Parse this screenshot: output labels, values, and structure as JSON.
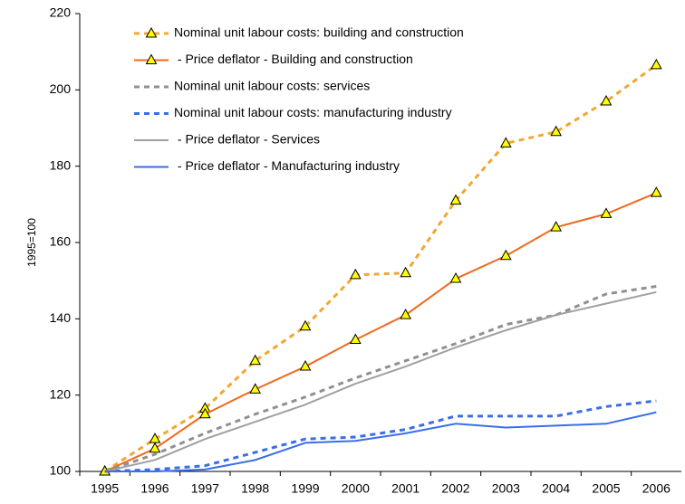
{
  "chart_data": {
    "type": "line",
    "y_label": "1995=100",
    "categories": [
      "1995",
      "1996",
      "1997",
      "1998",
      "1999",
      "2000",
      "2001",
      "2002",
      "2003",
      "2004",
      "2005",
      "2006"
    ],
    "ylim": [
      100,
      220
    ],
    "yticks": [
      100,
      120,
      140,
      160,
      180,
      200,
      220
    ],
    "legend": "top-left",
    "series": [
      {
        "name": "Nominal unit labour costs: building and construction",
        "color": "#f0a830",
        "dash": "dashed",
        "marker": "triangle",
        "values": [
          100,
          108.5,
          116.5,
          129,
          138,
          151.5,
          152,
          171,
          186,
          189,
          197,
          206.5
        ]
      },
      {
        "name": " - Price deflator - Building and construction",
        "color": "#f06a1c",
        "dash": "solid",
        "marker": "triangle",
        "values": [
          100,
          106,
          115,
          121.5,
          127.5,
          134.5,
          141,
          150.5,
          156.5,
          164,
          167.5,
          173
        ]
      },
      {
        "name": "Nominal unit labour costs: services",
        "color": "#909090",
        "dash": "dashed",
        "marker": "none",
        "values": [
          100,
          104.5,
          110,
          115,
          119.5,
          124.5,
          129,
          133.5,
          138.5,
          141,
          146.5,
          148.5
        ]
      },
      {
        "name": "Nominal unit labour costs: manufacturing industry",
        "color": "#3a6ee8",
        "dash": "dashed",
        "marker": "none",
        "values": [
          100,
          100.5,
          101.5,
          105,
          108.5,
          109,
          111,
          114.5,
          114.5,
          114.5,
          117,
          118.5
        ]
      },
      {
        "name": " - Price deflator - Services",
        "color": "#a0a0a0",
        "dash": "solid",
        "marker": "none",
        "values": [
          100,
          103,
          108.5,
          113,
          117.5,
          123,
          127.5,
          132.5,
          137,
          141,
          144,
          147
        ]
      },
      {
        "name": " - Price deflator - Manufacturing industry",
        "color": "#3a6ee8",
        "dash": "solid",
        "marker": "none",
        "values": [
          100,
          100,
          100.5,
          103,
          107.5,
          108,
          110,
          112.5,
          111.5,
          112,
          112.5,
          115.5
        ]
      }
    ]
  }
}
